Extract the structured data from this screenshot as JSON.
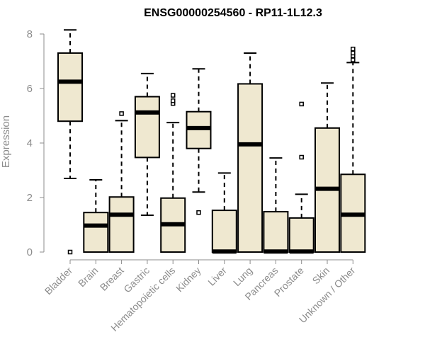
{
  "chart_data": {
    "type": "boxplot",
    "title": "ENSG00000254560 - RP11-1L12.3",
    "xlabel": "",
    "ylabel": "Expression",
    "ylim": [
      0,
      8.3
    ],
    "yticks": [
      0,
      2,
      4,
      6,
      8
    ],
    "categories": [
      "Bladder",
      "Brain",
      "Breast",
      "Gastric",
      "Hematopoietic cells",
      "Kidney",
      "Liver",
      "Lung",
      "Pancreas",
      "Prostate",
      "Skin",
      "Unknown / Other"
    ],
    "boxes": [
      {
        "name": "Bladder",
        "min": 2.7,
        "q1": 4.8,
        "median": 6.25,
        "q3": 7.3,
        "max": 8.15,
        "outliers": [
          0.0
        ]
      },
      {
        "name": "Brain",
        "min": 0.0,
        "q1": 0.0,
        "median": 0.97,
        "q3": 1.45,
        "max": 2.65,
        "outliers": []
      },
      {
        "name": "Breast",
        "min": 0.0,
        "q1": 0.0,
        "median": 1.37,
        "q3": 2.02,
        "max": 4.82,
        "outliers": [
          5.08
        ]
      },
      {
        "name": "Gastric",
        "min": 1.35,
        "q1": 3.47,
        "median": 5.12,
        "q3": 5.7,
        "max": 6.55,
        "outliers": []
      },
      {
        "name": "Hematopoietic cells",
        "min": 0.0,
        "q1": 0.0,
        "median": 1.02,
        "q3": 1.98,
        "max": 4.75,
        "outliers": [
          5.45,
          5.55,
          5.75
        ]
      },
      {
        "name": "Kidney",
        "min": 2.2,
        "q1": 3.8,
        "median": 4.55,
        "q3": 5.15,
        "max": 6.72,
        "outliers": [
          1.45
        ]
      },
      {
        "name": "Liver",
        "min": 0.0,
        "q1": 0.0,
        "median": 0.02,
        "q3": 1.53,
        "max": 2.9,
        "outliers": []
      },
      {
        "name": "Lung",
        "min": 0.0,
        "q1": 0.0,
        "median": 3.95,
        "q3": 6.17,
        "max": 7.3,
        "outliers": []
      },
      {
        "name": "Pancreas",
        "min": 0.0,
        "q1": 0.0,
        "median": 0.02,
        "q3": 1.48,
        "max": 3.45,
        "outliers": []
      },
      {
        "name": "Prostate",
        "min": 0.0,
        "q1": 0.0,
        "median": 0.02,
        "q3": 1.25,
        "max": 2.12,
        "outliers": [
          3.48,
          5.43
        ]
      },
      {
        "name": "Skin",
        "min": 0.0,
        "q1": 0.0,
        "median": 2.32,
        "q3": 4.55,
        "max": 6.2,
        "outliers": []
      },
      {
        "name": "Unknown / Other",
        "min": 0.0,
        "q1": 0.0,
        "median": 1.37,
        "q3": 2.85,
        "max": 6.95,
        "outliers": [
          7.05,
          7.2,
          7.3,
          7.45
        ]
      }
    ],
    "box_fill": "#efe8d0",
    "line_color": "#000000",
    "axis_color": "#8c8c8c"
  }
}
